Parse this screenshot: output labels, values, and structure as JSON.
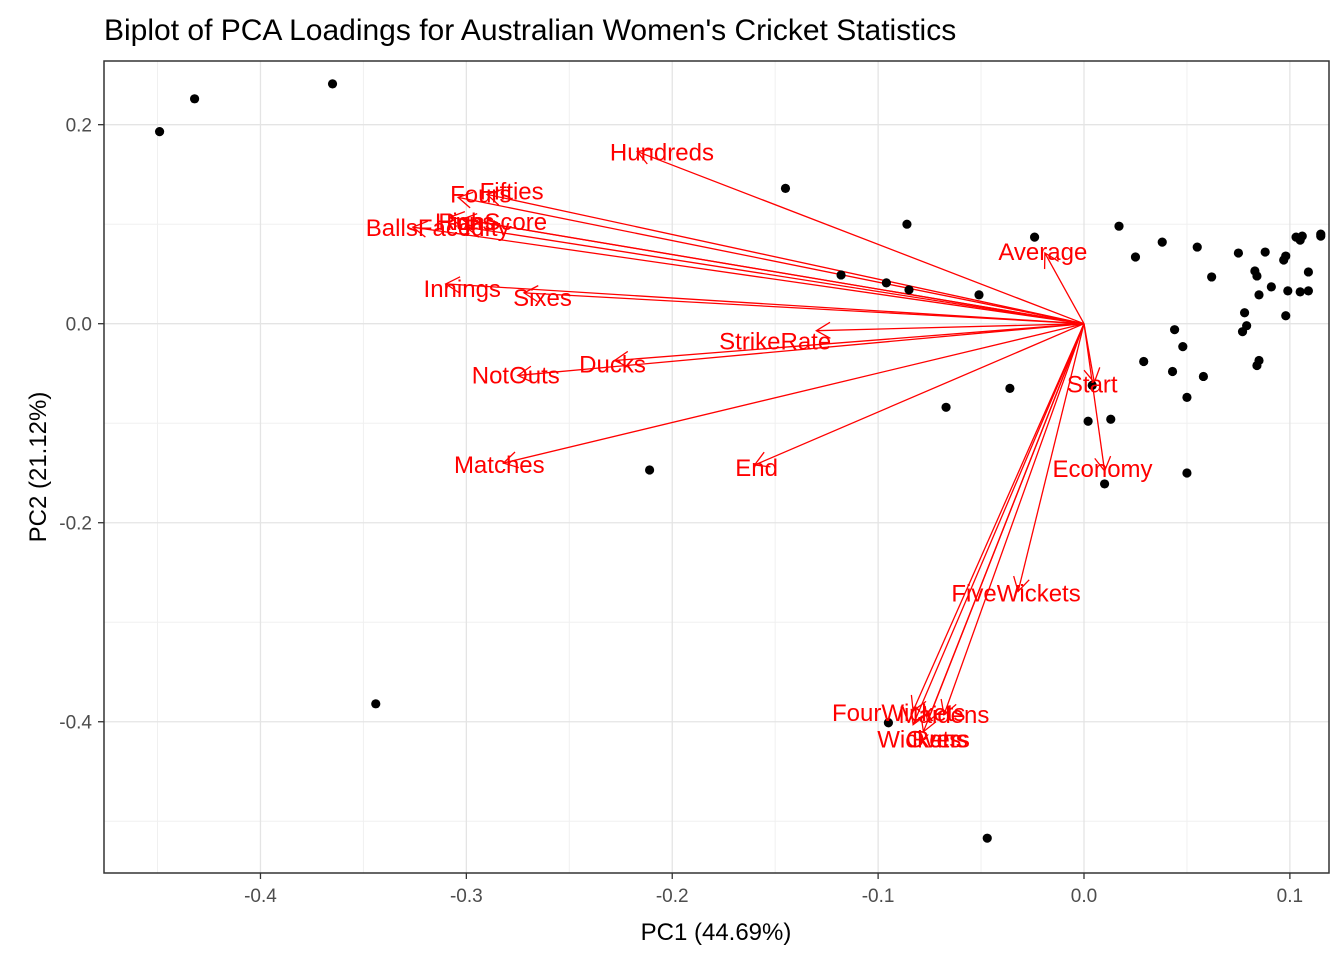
{
  "chart_data": {
    "type": "scatter",
    "title": "Biplot of PCA Loadings for Australian Women's Cricket Statistics",
    "xlabel": "PC1 (44.69%)",
    "ylabel": "PC2 (21.12%)",
    "xlim": [
      -0.476,
      0.119
    ],
    "ylim": [
      -0.552,
      0.264
    ],
    "x_ticks": [
      {
        "value": -0.4,
        "label": "-0.4"
      },
      {
        "value": -0.3,
        "label": "-0.3"
      },
      {
        "value": -0.2,
        "label": "-0.2"
      },
      {
        "value": -0.1,
        "label": "-0.1"
      },
      {
        "value": 0.0,
        "label": "0.0"
      },
      {
        "value": 0.1,
        "label": "0.1"
      }
    ],
    "y_ticks": [
      {
        "value": -0.4,
        "label": "-0.4"
      },
      {
        "value": -0.2,
        "label": "-0.2"
      },
      {
        "value": 0.0,
        "label": "0.0"
      },
      {
        "value": 0.2,
        "label": "0.2"
      }
    ],
    "grid": true,
    "arrow_color": "#ff0000",
    "point_color": "#000000",
    "points": [
      {
        "x": -0.449,
        "y": 0.193
      },
      {
        "x": -0.432,
        "y": 0.226
      },
      {
        "x": -0.365,
        "y": 0.241
      },
      {
        "x": -0.344,
        "y": -0.382
      },
      {
        "x": -0.211,
        "y": -0.147
      },
      {
        "x": -0.145,
        "y": 0.136
      },
      {
        "x": -0.118,
        "y": 0.049
      },
      {
        "x": -0.096,
        "y": 0.041
      },
      {
        "x": -0.086,
        "y": 0.1
      },
      {
        "x": -0.085,
        "y": 0.034
      },
      {
        "x": -0.067,
        "y": -0.084
      },
      {
        "x": -0.051,
        "y": 0.029
      },
      {
        "x": -0.036,
        "y": -0.065
      },
      {
        "x": -0.024,
        "y": 0.087
      },
      {
        "x": -0.047,
        "y": -0.517
      },
      {
        "x": -0.095,
        "y": -0.401
      },
      {
        "x": 0.002,
        "y": -0.098
      },
      {
        "x": 0.01,
        "y": -0.161
      },
      {
        "x": 0.013,
        "y": -0.096
      },
      {
        "x": 0.004,
        "y": -0.062
      },
      {
        "x": 0.017,
        "y": 0.098
      },
      {
        "x": 0.025,
        "y": 0.067
      },
      {
        "x": 0.029,
        "y": -0.038
      },
      {
        "x": 0.038,
        "y": 0.082
      },
      {
        "x": 0.044,
        "y": -0.006
      },
      {
        "x": 0.043,
        "y": -0.048
      },
      {
        "x": 0.048,
        "y": -0.023
      },
      {
        "x": 0.05,
        "y": -0.074
      },
      {
        "x": 0.05,
        "y": -0.15
      },
      {
        "x": 0.055,
        "y": 0.077
      },
      {
        "x": 0.058,
        "y": -0.053
      },
      {
        "x": 0.062,
        "y": 0.047
      },
      {
        "x": 0.075,
        "y": 0.071
      },
      {
        "x": 0.078,
        "y": 0.011
      },
      {
        "x": 0.077,
        "y": -0.008
      },
      {
        "x": 0.079,
        "y": -0.002
      },
      {
        "x": 0.083,
        "y": 0.053
      },
      {
        "x": 0.084,
        "y": 0.048
      },
      {
        "x": 0.084,
        "y": -0.042
      },
      {
        "x": 0.085,
        "y": 0.029
      },
      {
        "x": 0.085,
        "y": -0.037
      },
      {
        "x": 0.088,
        "y": 0.072
      },
      {
        "x": 0.091,
        "y": 0.037
      },
      {
        "x": 0.097,
        "y": 0.064
      },
      {
        "x": 0.098,
        "y": 0.068
      },
      {
        "x": 0.098,
        "y": 0.008
      },
      {
        "x": 0.099,
        "y": 0.033
      },
      {
        "x": 0.103,
        "y": 0.087
      },
      {
        "x": 0.105,
        "y": 0.084
      },
      {
        "x": 0.105,
        "y": 0.032
      },
      {
        "x": 0.106,
        "y": 0.088
      },
      {
        "x": 0.109,
        "y": 0.052
      },
      {
        "x": 0.109,
        "y": 0.033
      },
      {
        "x": 0.115,
        "y": 0.09
      },
      {
        "x": 0.115,
        "y": 0.088
      }
    ],
    "loadings": [
      {
        "name": "Hundreds",
        "x": -0.217,
        "y": 0.173,
        "lx": -0.205,
        "ly": 0.172
      },
      {
        "name": "Fifties",
        "x": -0.29,
        "y": 0.13,
        "lx": -0.278,
        "ly": 0.133
      },
      {
        "name": "Fours",
        "x": -0.304,
        "y": 0.127,
        "lx": -0.293,
        "ly": 0.13
      },
      {
        "name": "HighScore",
        "x": -0.302,
        "y": 0.105,
        "lx": -0.288,
        "ly": 0.102
      },
      {
        "name": "Runs",
        "x": -0.308,
        "y": 0.107,
        "lx": -0.3,
        "ly": 0.102
      },
      {
        "name": "BallsFaced",
        "x": -0.326,
        "y": 0.097,
        "lx": -0.32,
        "ly": 0.096
      },
      {
        "name": "Fifty",
        "x": -0.3,
        "y": 0.097,
        "lx": -0.29,
        "ly": 0.096
      },
      {
        "name": "Innings",
        "x": -0.31,
        "y": 0.04,
        "lx": -0.302,
        "ly": 0.035
      },
      {
        "name": "Sixes",
        "x": -0.272,
        "y": 0.031,
        "lx": -0.263,
        "ly": 0.026
      },
      {
        "name": "StrikeRate",
        "x": -0.13,
        "y": -0.007,
        "lx": -0.15,
        "ly": -0.018
      },
      {
        "name": "NotOuts",
        "x": -0.275,
        "y": -0.052,
        "lx": -0.276,
        "ly": -0.052
      },
      {
        "name": "Ducks",
        "x": -0.228,
        "y": -0.037,
        "lx": -0.229,
        "ly": -0.041
      },
      {
        "name": "Matches",
        "x": -0.282,
        "y": -0.14,
        "lx": -0.284,
        "ly": -0.142
      },
      {
        "name": "End",
        "x": -0.16,
        "y": -0.142,
        "lx": -0.159,
        "ly": -0.145
      },
      {
        "name": "Average",
        "x": -0.019,
        "y": 0.071,
        "lx": -0.02,
        "ly": 0.072
      },
      {
        "name": "Start",
        "x": 0.005,
        "y": -0.059,
        "lx": 0.004,
        "ly": -0.061
      },
      {
        "name": "Economy",
        "x": 0.01,
        "y": -0.148,
        "lx": 0.009,
        "ly": -0.146
      },
      {
        "name": "FiveWickets",
        "x": -0.032,
        "y": -0.269,
        "lx": -0.033,
        "ly": -0.271
      },
      {
        "name": "FourWickets",
        "x": -0.083,
        "y": -0.389,
        "lx": -0.09,
        "ly": -0.391
      },
      {
        "name": "Maidens",
        "x": -0.068,
        "y": -0.393,
        "lx": -0.068,
        "ly": -0.393
      },
      {
        "name": "Overs",
        "x": -0.076,
        "y": -0.4,
        "lx": -0.071,
        "ly": -0.418
      },
      {
        "name": "Wickets",
        "x": -0.083,
        "y": -0.403,
        "lx": -0.08,
        "ly": -0.418
      },
      {
        "name": "Runs",
        "x": -0.078,
        "y": -0.41,
        "lx": -0.07,
        "ly": -0.418
      }
    ]
  }
}
